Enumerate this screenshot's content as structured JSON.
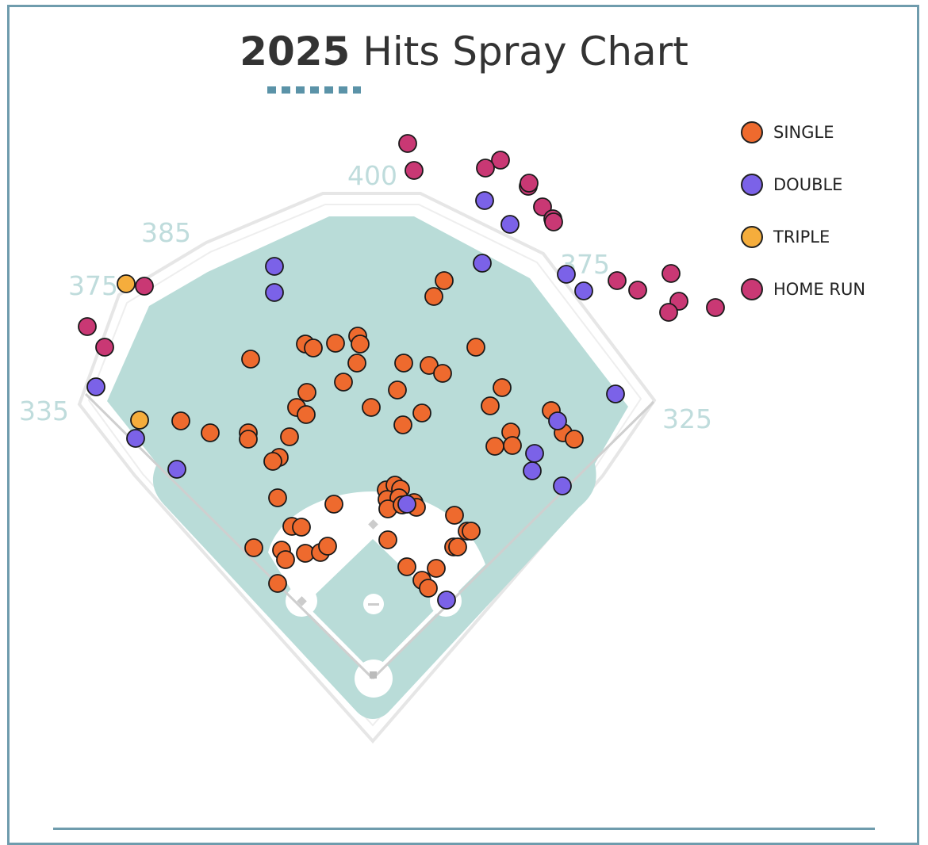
{
  "title": {
    "year": "2025",
    "text": "Hits Spray Chart"
  },
  "field": {
    "distances": [
      "400",
      "385",
      "375",
      "375",
      "335",
      "325"
    ]
  },
  "legend": [
    {
      "label": "SINGLE",
      "color": "#ee6a2e"
    },
    {
      "label": "DOUBLE",
      "color": "#7b62e8"
    },
    {
      "label": "TRIPLE",
      "color": "#f5ad3c"
    },
    {
      "label": "HOME RUN",
      "color": "#c93874"
    }
  ],
  "chart_data": {
    "type": "scatter",
    "title": "2025 Hits Spray Chart",
    "series": [
      {
        "name": "SINGLE",
        "color": "#ee6a2e",
        "points": [
          [
            560,
            354
          ],
          [
            547,
            374
          ],
          [
            451,
            424
          ],
          [
            454,
            434
          ],
          [
            385,
            434
          ],
          [
            395,
            439
          ],
          [
            423,
            433
          ],
          [
            600,
            438
          ],
          [
            316,
            453
          ],
          [
            450,
            458
          ],
          [
            509,
            458
          ],
          [
            541,
            461
          ],
          [
            558,
            471
          ],
          [
            433,
            482
          ],
          [
            633,
            489
          ],
          [
            501,
            492
          ],
          [
            387,
            495
          ],
          [
            374,
            514
          ],
          [
            386,
            523
          ],
          [
            468,
            514
          ],
          [
            532,
            521
          ],
          [
            618,
            512
          ],
          [
            508,
            536
          ],
          [
            228,
            531
          ],
          [
            265,
            546
          ],
          [
            313,
            546
          ],
          [
            313,
            554
          ],
          [
            365,
            551
          ],
          [
            644,
            545
          ],
          [
            695,
            518
          ],
          [
            710,
            546
          ],
          [
            724,
            554
          ],
          [
            624,
            563
          ],
          [
            646,
            562
          ],
          [
            352,
            577
          ],
          [
            344,
            582
          ],
          [
            350,
            628
          ],
          [
            421,
            636
          ],
          [
            487,
            618
          ],
          [
            498,
            612
          ],
          [
            505,
            617
          ],
          [
            488,
            630
          ],
          [
            503,
            628
          ],
          [
            522,
            634
          ],
          [
            525,
            640
          ],
          [
            489,
            642
          ],
          [
            507,
            637
          ],
          [
            573,
            650
          ],
          [
            589,
            670
          ],
          [
            594,
            670
          ],
          [
            368,
            664
          ],
          [
            380,
            665
          ],
          [
            489,
            681
          ],
          [
            572,
            690
          ],
          [
            577,
            690
          ],
          [
            320,
            691
          ],
          [
            355,
            694
          ],
          [
            360,
            706
          ],
          [
            385,
            698
          ],
          [
            404,
            697
          ],
          [
            413,
            689
          ],
          [
            513,
            715
          ],
          [
            550,
            717
          ],
          [
            532,
            732
          ],
          [
            540,
            742
          ],
          [
            350,
            736
          ]
        ]
      },
      {
        "name": "DOUBLE",
        "color": "#7b62e8",
        "points": [
          [
            346,
            336
          ],
          [
            346,
            369
          ],
          [
            611,
            253
          ],
          [
            643,
            283
          ],
          [
            608,
            332
          ],
          [
            714,
            346
          ],
          [
            736,
            367
          ],
          [
            776,
            497
          ],
          [
            121,
            488
          ],
          [
            171,
            553
          ],
          [
            223,
            592
          ],
          [
            703,
            531
          ],
          [
            674,
            572
          ],
          [
            671,
            594
          ],
          [
            709,
            613
          ],
          [
            513,
            636
          ],
          [
            563,
            757
          ]
        ]
      },
      {
        "name": "TRIPLE",
        "color": "#f5ad3c",
        "points": [
          [
            159,
            358
          ],
          [
            176,
            530
          ]
        ]
      },
      {
        "name": "HOME RUN",
        "color": "#c93874",
        "points": [
          [
            514,
            181
          ],
          [
            522,
            215
          ],
          [
            631,
            202
          ],
          [
            612,
            212
          ],
          [
            666,
            235
          ],
          [
            667,
            231
          ],
          [
            684,
            261
          ],
          [
            697,
            276
          ],
          [
            698,
            280
          ],
          [
            182,
            361
          ],
          [
            110,
            412
          ],
          [
            132,
            438
          ],
          [
            778,
            354
          ],
          [
            804,
            366
          ],
          [
            846,
            345
          ],
          [
            856,
            380
          ],
          [
            843,
            394
          ],
          [
            902,
            388
          ]
        ]
      }
    ]
  }
}
